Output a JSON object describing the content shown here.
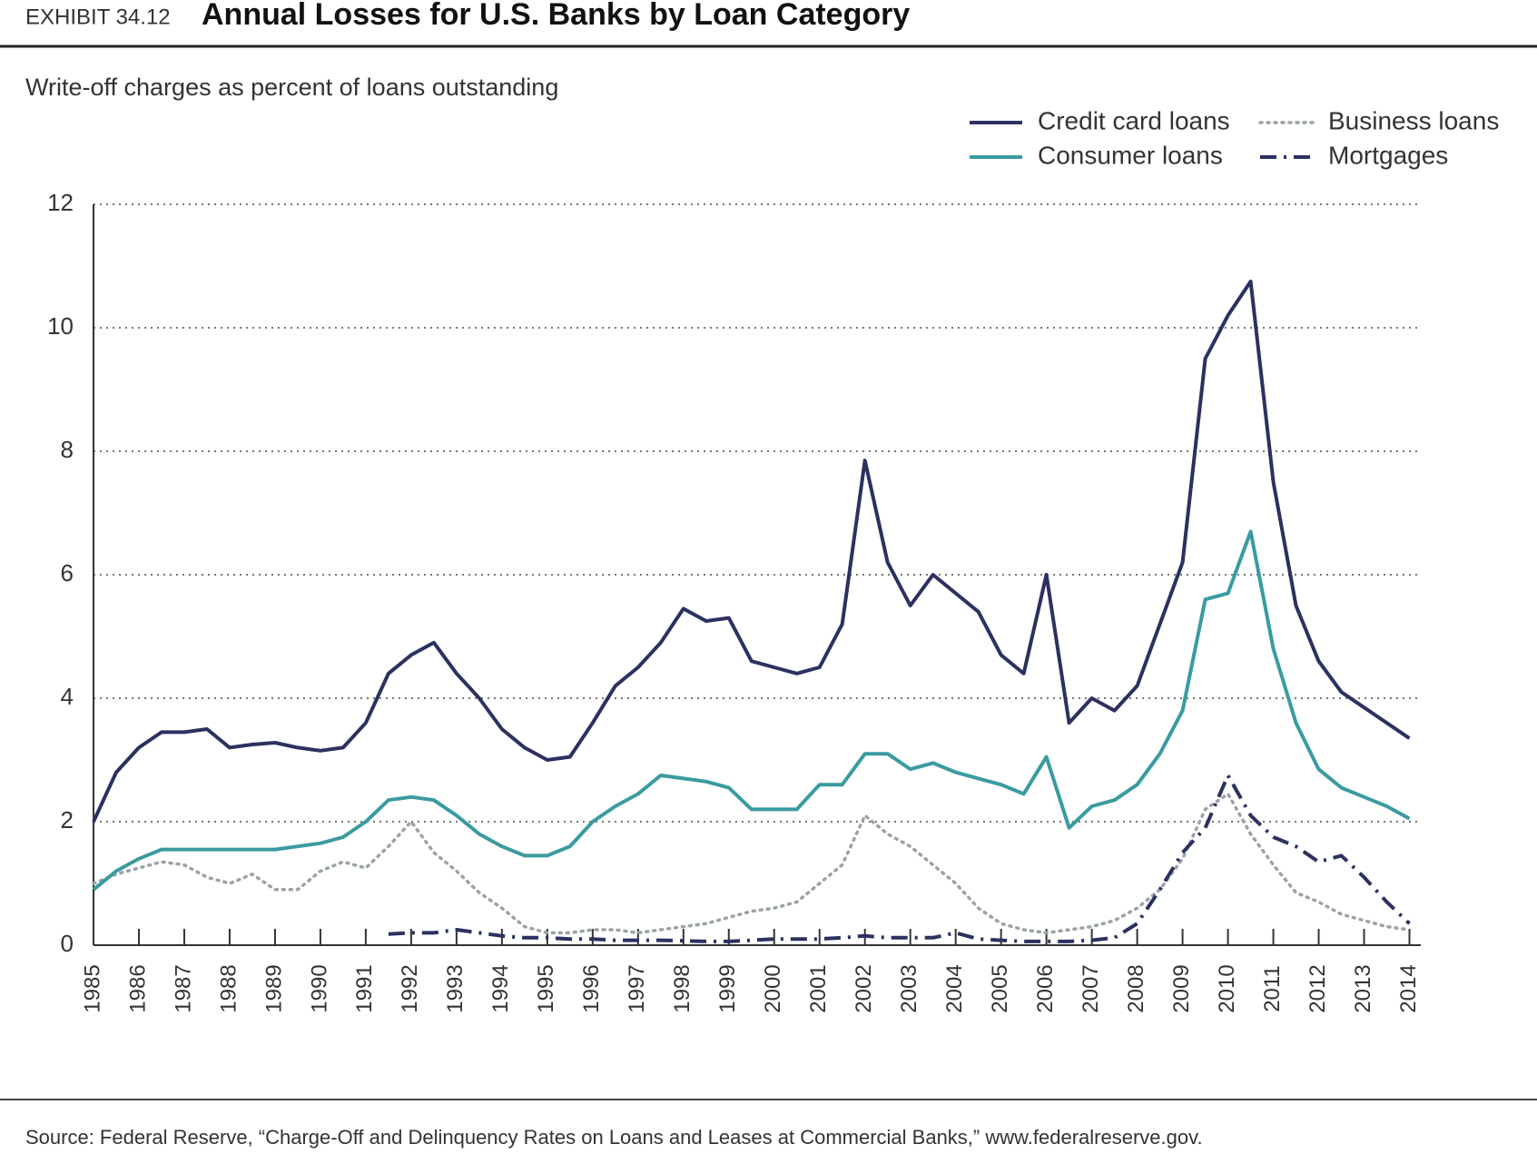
{
  "chart_data": {
    "type": "line",
    "exhibit": "EXHIBIT 34.12",
    "title": "Annual Losses for U.S. Banks by Loan Category",
    "subtitle": "Write-off charges as percent of loans outstanding",
    "source": "Source: Federal Reserve, “Charge-Off and Delinquency Rates on Loans and Leases at Commercial Banks,” www.federalreserve.gov.",
    "x": [
      1985,
      1985.5,
      1986,
      1986.5,
      1987,
      1987.5,
      1988,
      1988.5,
      1989,
      1989.5,
      1990,
      1990.5,
      1991,
      1991.5,
      1992,
      1992.5,
      1993,
      1993.5,
      1994,
      1994.5,
      1995,
      1995.5,
      1996,
      1996.5,
      1997,
      1997.5,
      1998,
      1998.5,
      1999,
      1999.5,
      2000,
      2000.5,
      2001,
      2001.5,
      2002,
      2002.5,
      2003,
      2003.5,
      2004,
      2004.5,
      2005,
      2005.5,
      2006,
      2006.5,
      2007,
      2007.5,
      2008,
      2008.5,
      2009,
      2009.5,
      2010,
      2010.5,
      2011,
      2011.5,
      2012,
      2012.5,
      2013,
      2013.5,
      2014
    ],
    "series": [
      {
        "name": "Credit card loans",
        "color": "#2b3160",
        "dash": "solid",
        "values": [
          2.0,
          2.8,
          3.2,
          3.45,
          3.45,
          3.5,
          3.2,
          3.25,
          3.28,
          3.2,
          3.15,
          3.2,
          3.6,
          4.4,
          4.7,
          4.9,
          4.4,
          4.0,
          3.5,
          3.2,
          3.0,
          3.05,
          3.6,
          4.2,
          4.5,
          4.9,
          5.45,
          5.25,
          5.3,
          4.6,
          4.5,
          4.4,
          4.5,
          5.2,
          7.85,
          6.2,
          5.5,
          6.0,
          5.7,
          5.4,
          4.7,
          4.4,
          6.0,
          3.6,
          4.0,
          3.8,
          4.2,
          5.2,
          6.2,
          9.5,
          10.2,
          10.75,
          7.5,
          5.5,
          4.6,
          4.1,
          3.85,
          3.6,
          3.35
        ]
      },
      {
        "name": "Business loans",
        "color": "#9aa3a8",
        "dash": "dotted",
        "values": [
          1.0,
          1.15,
          1.25,
          1.35,
          1.3,
          1.1,
          1.0,
          1.15,
          0.9,
          0.9,
          1.2,
          1.35,
          1.25,
          1.6,
          2.0,
          1.5,
          1.2,
          0.85,
          0.6,
          0.3,
          0.2,
          0.2,
          0.25,
          0.25,
          0.2,
          0.25,
          0.3,
          0.35,
          0.45,
          0.55,
          0.6,
          0.7,
          1.0,
          1.3,
          2.1,
          1.8,
          1.6,
          1.3,
          1.0,
          0.6,
          0.35,
          0.25,
          0.2,
          0.25,
          0.3,
          0.4,
          0.6,
          0.9,
          1.4,
          2.2,
          2.45,
          1.8,
          1.3,
          0.85,
          0.7,
          0.5,
          0.4,
          0.3,
          0.25
        ]
      },
      {
        "name": "Consumer loans",
        "color": "#3a9ba0",
        "dash": "solid",
        "values": [
          0.9,
          1.2,
          1.4,
          1.55,
          1.55,
          1.55,
          1.55,
          1.55,
          1.55,
          1.6,
          1.65,
          1.75,
          2.0,
          2.35,
          2.4,
          2.35,
          2.1,
          1.8,
          1.6,
          1.45,
          1.45,
          1.6,
          2.0,
          2.25,
          2.45,
          2.75,
          2.7,
          2.65,
          2.55,
          2.2,
          2.2,
          2.2,
          2.6,
          2.6,
          3.1,
          3.1,
          2.85,
          2.95,
          2.8,
          2.7,
          2.6,
          2.45,
          3.05,
          1.9,
          2.25,
          2.35,
          2.6,
          3.1,
          3.8,
          5.6,
          5.7,
          6.7,
          4.8,
          3.6,
          2.85,
          2.55,
          2.4,
          2.25,
          2.05
        ]
      },
      {
        "name": "Mortgages",
        "color": "#2b3160",
        "dash": "dashdot",
        "values": [
          null,
          null,
          null,
          null,
          null,
          null,
          null,
          null,
          null,
          null,
          null,
          null,
          null,
          0.18,
          0.2,
          0.2,
          0.25,
          0.2,
          0.15,
          0.12,
          0.12,
          0.1,
          0.1,
          0.08,
          0.08,
          0.08,
          0.07,
          0.06,
          0.06,
          0.08,
          0.1,
          0.1,
          0.1,
          0.12,
          0.15,
          0.12,
          0.12,
          0.12,
          0.2,
          0.1,
          0.08,
          0.06,
          0.06,
          0.06,
          0.08,
          0.12,
          0.35,
          0.9,
          1.5,
          1.9,
          2.75,
          2.1,
          1.75,
          1.6,
          1.35,
          1.45,
          1.1,
          0.7,
          0.35
        ]
      }
    ],
    "xlim": [
      1985,
      2014.25
    ],
    "xticks": [
      1985,
      1986,
      1987,
      1988,
      1989,
      1990,
      1991,
      1992,
      1993,
      1994,
      1995,
      1996,
      1997,
      1998,
      1999,
      2000,
      2001,
      2002,
      2003,
      2004,
      2005,
      2006,
      2007,
      2008,
      2009,
      2010,
      2011,
      2012,
      2013,
      2014
    ],
    "ylim": [
      0,
      12
    ],
    "yticks": [
      0,
      2,
      4,
      6,
      8,
      10,
      12
    ],
    "grid": true,
    "legend": "top-right"
  }
}
